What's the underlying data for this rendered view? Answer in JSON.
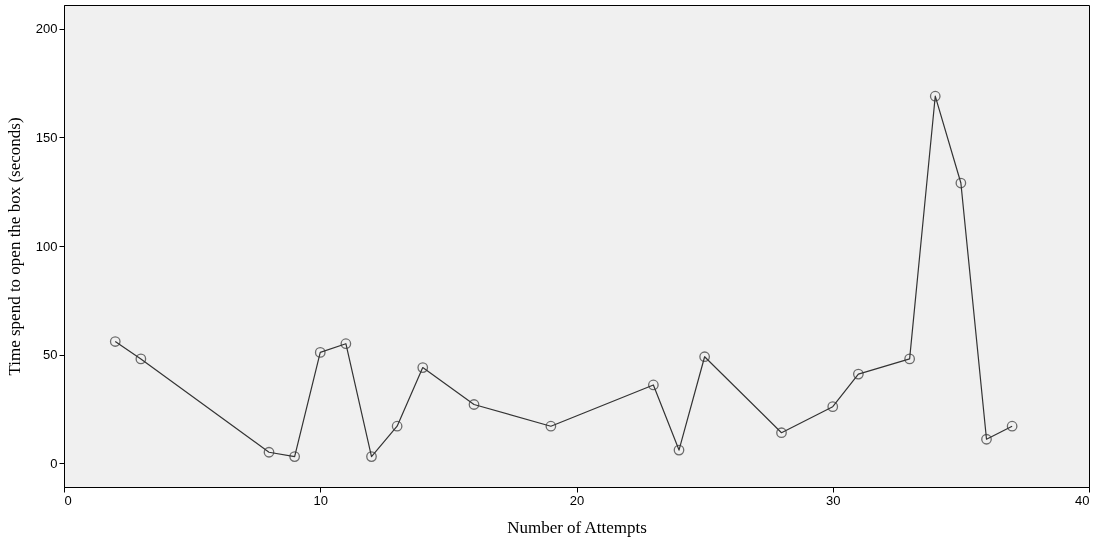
{
  "chart_data": {
    "type": "line",
    "xlabel": "Number of Attempts",
    "ylabel": "Time spend to open the box (seconds)",
    "x": [
      2,
      3,
      8,
      9,
      10,
      11,
      12,
      13,
      14,
      16,
      19,
      23,
      24,
      25,
      28,
      30,
      31,
      33,
      34,
      35,
      36,
      37
    ],
    "series": [
      {
        "color": "#333333",
        "values": [
          56,
          48,
          5,
          3,
          51,
          55,
          3,
          17,
          44,
          27,
          17,
          36,
          6,
          49,
          14,
          26,
          41,
          48,
          169,
          129,
          11,
          17
        ]
      }
    ],
    "xlim": [
      0,
      40
    ],
    "xticks": [
      0,
      10,
      20,
      30,
      40
    ],
    "ylim": [
      -11,
      211
    ],
    "yticks": [
      0,
      50,
      100,
      150,
      200
    ],
    "grid": false,
    "legend": false,
    "marker": "circle",
    "line_style": "solid"
  }
}
